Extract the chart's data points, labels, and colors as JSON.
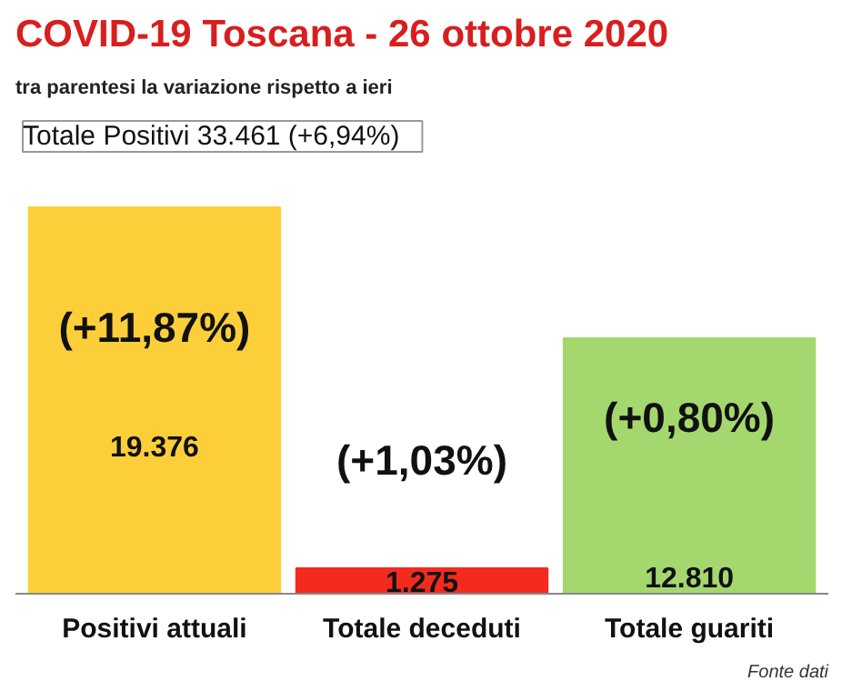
{
  "chart_data": {
    "type": "bar",
    "title": "COVID-19  Toscana - 26 ottobre 2020",
    "subtitle": "tra parentesi la variazione rispetto a ieri",
    "categories": [
      "Positivi attuali",
      "Totale deceduti",
      "Totale guariti"
    ],
    "values": [
      19376,
      1275,
      12810
    ],
    "colors": [
      "#fccf3a",
      "#f52a1e",
      "#a4d86f"
    ],
    "value_labels": [
      "19.376",
      "1.275",
      "12.810"
    ],
    "annotations": [
      "Totale Positivi    33.461 (+6,94%)",
      "(+11,87%)",
      "(+1,03%)",
      "(+0,80%)",
      "Fonte dati"
    ]
  }
}
